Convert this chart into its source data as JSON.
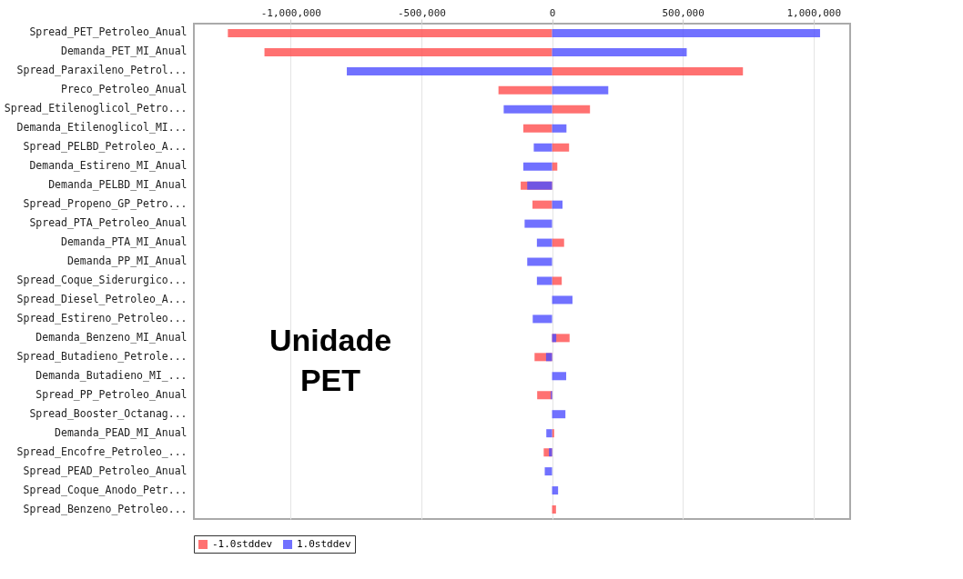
{
  "chart_data": {
    "type": "bar",
    "orientation": "horizontal",
    "categories": [
      "Spread_PET_Petroleo_Anual",
      "Demanda_PET_MI_Anual",
      "Spread_Paraxileno_Petrol...",
      "Preco_Petroleo_Anual",
      "Spread_Etilenoglicol_Petro...",
      "Demanda_Etilenoglicol_MI...",
      "Spread_PELBD_Petroleo_A...",
      "Demanda_Estireno_MI_Anual",
      "Demanda_PELBD_MI_Anual",
      "Spread_Propeno_GP_Petro...",
      "Spread_PTA_Petroleo_Anual",
      "Demanda_PTA_MI_Anual",
      "Demanda_PP_MI_Anual",
      "Spread_Coque_Siderurgico...",
      "Spread_Diesel_Petroleo_A...",
      "Spread_Estireno_Petroleo...",
      "Demanda_Benzeno_MI_Anual",
      "Spread_Butadieno_Petrole...",
      "Demanda_Butadieno_MI_...",
      "Spread_PP_Petroleo_Anual",
      "Spread_Booster_Octanag...",
      "Demanda_PEAD_MI_Anual",
      "Spread_Encofre_Petroleo_...",
      "Spread_PEAD_Petroleo_Anual",
      "Spread_Coque_Anodo_Petr...",
      "Spread_Benzeno_Petroleo..."
    ],
    "series": [
      {
        "name": "-1.0stddev",
        "color": "#ff4d4d",
        "values": [
          -1240000,
          -1100000,
          730000,
          -205000,
          145000,
          -110000,
          65000,
          20000,
          -120000,
          -75000,
          null,
          46000,
          null,
          37000,
          null,
          null,
          67000,
          -67000,
          null,
          -57000,
          null,
          8000,
          -32000,
          null,
          null,
          15000
        ]
      },
      {
        "name": "1.0stddev",
        "color": "#4d4dff",
        "values": [
          1025000,
          515000,
          -785000,
          215000,
          -185000,
          55000,
          -70000,
          -110000,
          -95000,
          40000,
          -105000,
          -58000,
          -95000,
          -58000,
          78000,
          -74000,
          16000,
          -23000,
          54000,
          -5000,
          51000,
          -22000,
          -12000,
          -28000,
          23000,
          null
        ]
      }
    ],
    "xlim": [
      -1370000,
      1140000
    ],
    "xticks": [
      {
        "value": -1000000,
        "label": "-1,000,000"
      },
      {
        "value": -500000,
        "label": "-500,000"
      },
      0,
      {
        "value": 500000,
        "label": "500,000"
      },
      {
        "value": 1000000,
        "label": "1,000,000"
      }
    ],
    "grid": "x",
    "legend": "bottom",
    "annotations": [
      "Unidade PET"
    ]
  }
}
